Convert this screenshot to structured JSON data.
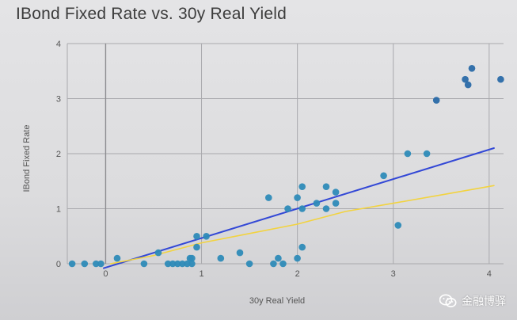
{
  "chart_data": {
    "type": "scatter",
    "title": "IBond Fixed Rate vs. 30y Real Yield",
    "xlabel": "30y Real Yield",
    "ylabel": "IBond Fixed Rate",
    "xlim": [
      -0.4,
      4.15
    ],
    "ylim": [
      0,
      4
    ],
    "xticks": [
      0,
      1,
      2,
      3,
      4
    ],
    "yticks": [
      0,
      1,
      2,
      3,
      4
    ],
    "grid": true,
    "series": [
      {
        "type": "scatter",
        "color": "#2e8bb8",
        "points": [
          [
            -0.35,
            0
          ],
          [
            -0.22,
            0
          ],
          [
            -0.1,
            0
          ],
          [
            -0.05,
            0
          ],
          [
            0.12,
            0.1
          ],
          [
            0.4,
            0
          ],
          [
            0.55,
            0.2
          ],
          [
            0.65,
            0
          ],
          [
            0.7,
            0
          ],
          [
            0.75,
            0
          ],
          [
            0.8,
            0
          ],
          [
            0.85,
            0
          ],
          [
            0.88,
            0.1
          ],
          [
            0.9,
            0
          ],
          [
            0.9,
            0.1
          ],
          [
            0.95,
            0.3
          ],
          [
            0.95,
            0.5
          ],
          [
            1.05,
            0.5
          ],
          [
            1.2,
            0.1
          ],
          [
            1.4,
            0.2
          ],
          [
            1.5,
            0
          ],
          [
            1.7,
            1.2
          ],
          [
            1.75,
            0
          ],
          [
            1.8,
            0.1
          ],
          [
            1.85,
            0
          ],
          [
            1.9,
            1.0
          ],
          [
            2.0,
            1.2
          ],
          [
            2.0,
            0.1
          ],
          [
            2.05,
            1.4
          ],
          [
            2.05,
            1.0
          ],
          [
            2.05,
            0.3
          ],
          [
            2.2,
            1.1
          ],
          [
            2.3,
            1.4
          ],
          [
            2.3,
            1.0
          ],
          [
            2.4,
            1.3
          ],
          [
            2.4,
            1.1
          ],
          [
            2.9,
            1.6
          ],
          [
            3.05,
            0.7
          ],
          [
            3.15,
            2.0
          ],
          [
            3.35,
            2.0
          ],
          [
            3.45,
            2.97
          ],
          [
            3.75,
            3.35
          ],
          [
            3.78,
            3.25
          ],
          [
            3.82,
            3.55
          ],
          [
            4.12,
            3.35
          ]
        ]
      },
      {
        "type": "line",
        "color": "#3348d6",
        "points": [
          [
            -0.02,
            -0.08
          ],
          [
            4.05,
            2.1
          ]
        ]
      },
      {
        "type": "line",
        "color": "#f2d340",
        "points": [
          [
            0.05,
            0
          ],
          [
            0.5,
            0.15
          ],
          [
            1.0,
            0.38
          ],
          [
            1.5,
            0.55
          ],
          [
            2.0,
            0.72
          ],
          [
            2.5,
            0.95
          ],
          [
            3.0,
            1.1
          ],
          [
            3.5,
            1.25
          ],
          [
            4.05,
            1.42
          ]
        ]
      }
    ]
  },
  "watermark": {
    "text": "金融博驿",
    "icon": "wechat-icon"
  }
}
